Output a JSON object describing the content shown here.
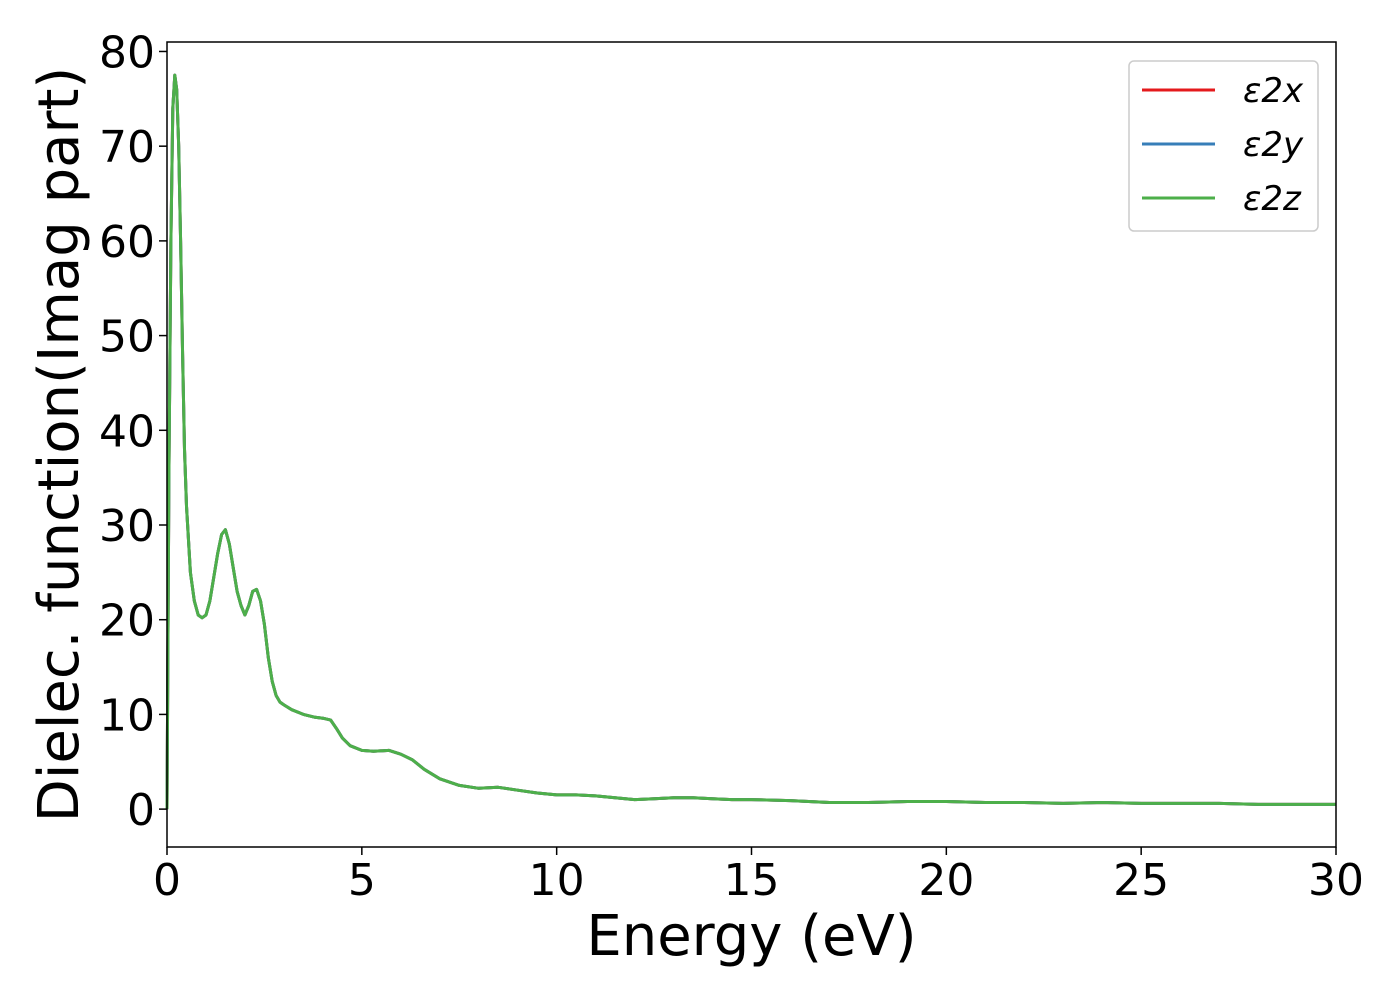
{
  "chart_data": {
    "type": "line",
    "title": "",
    "xlabel": "Energy (eV)",
    "ylabel": "Dielec. function(Imag part)",
    "xlim": [
      0,
      30
    ],
    "ylim": [
      -4,
      81
    ],
    "xticks": [
      "0",
      "5",
      "10",
      "15",
      "20",
      "25",
      "30"
    ],
    "xtick_values": [
      0,
      5,
      10,
      15,
      20,
      25,
      30
    ],
    "yticks": [
      "0",
      "10",
      "20",
      "30",
      "40",
      "50",
      "60",
      "70",
      "80"
    ],
    "ytick_values": [
      0,
      10,
      20,
      30,
      40,
      50,
      60,
      70,
      80
    ],
    "grid": false,
    "legend_position": "top-right",
    "x": [
      0,
      0.05,
      0.1,
      0.15,
      0.2,
      0.25,
      0.3,
      0.35,
      0.4,
      0.45,
      0.5,
      0.6,
      0.7,
      0.8,
      0.9,
      1.0,
      1.1,
      1.2,
      1.3,
      1.4,
      1.5,
      1.6,
      1.7,
      1.8,
      1.9,
      2.0,
      2.1,
      2.2,
      2.3,
      2.4,
      2.5,
      2.6,
      2.7,
      2.8,
      2.9,
      3.0,
      3.2,
      3.5,
      3.8,
      4.0,
      4.2,
      4.35,
      4.5,
      4.7,
      5.0,
      5.3,
      5.7,
      6.0,
      6.3,
      6.6,
      7.0,
      7.5,
      8.0,
      8.5,
      9.0,
      9.5,
      10.0,
      10.5,
      11.0,
      11.5,
      12.0,
      12.5,
      13.0,
      13.5,
      14.0,
      14.5,
      15.0,
      16.0,
      17.0,
      18.0,
      19.0,
      20.0,
      21.0,
      22.0,
      23.0,
      24.0,
      25.0,
      26.0,
      27.0,
      28.0,
      29.0,
      30.0
    ],
    "series": [
      {
        "name": "ε2x",
        "color": "#e41a1c",
        "values": [
          0,
          35,
          60,
          74,
          77.5,
          76,
          70,
          60,
          48,
          38,
          32,
          25,
          22,
          20.5,
          20.2,
          20.5,
          22,
          24.5,
          27,
          29,
          29.5,
          28,
          25.5,
          23,
          21.5,
          20.5,
          21.5,
          23,
          23.2,
          22,
          19.5,
          16,
          13.5,
          12,
          11.3,
          11,
          10.5,
          10,
          9.7,
          9.6,
          9.4,
          8.5,
          7.5,
          6.7,
          6.2,
          6.1,
          6.2,
          5.8,
          5.2,
          4.2,
          3.2,
          2.5,
          2.2,
          2.3,
          2.0,
          1.7,
          1.5,
          1.5,
          1.4,
          1.2,
          1.0,
          1.1,
          1.2,
          1.2,
          1.1,
          1.0,
          1.0,
          0.9,
          0.7,
          0.7,
          0.8,
          0.8,
          0.7,
          0.7,
          0.6,
          0.7,
          0.6,
          0.6,
          0.6,
          0.5,
          0.5,
          0.5
        ]
      },
      {
        "name": "ε2y",
        "color": "#377eb8",
        "values": [
          0,
          35,
          60,
          74,
          77.5,
          76,
          70,
          60,
          48,
          38,
          32,
          25,
          22,
          20.5,
          20.2,
          20.5,
          22,
          24.5,
          27,
          29,
          29.5,
          28,
          25.5,
          23,
          21.5,
          20.5,
          21.5,
          23,
          23.2,
          22,
          19.5,
          16,
          13.5,
          12,
          11.3,
          11,
          10.5,
          10,
          9.7,
          9.6,
          9.4,
          8.5,
          7.5,
          6.7,
          6.2,
          6.1,
          6.2,
          5.8,
          5.2,
          4.2,
          3.2,
          2.5,
          2.2,
          2.3,
          2.0,
          1.7,
          1.5,
          1.5,
          1.4,
          1.2,
          1.0,
          1.1,
          1.2,
          1.2,
          1.1,
          1.0,
          1.0,
          0.9,
          0.7,
          0.7,
          0.8,
          0.8,
          0.7,
          0.7,
          0.6,
          0.7,
          0.6,
          0.6,
          0.6,
          0.5,
          0.5,
          0.5
        ]
      },
      {
        "name": "ε2z",
        "color": "#4daf4a",
        "values": [
          0,
          35,
          60,
          74,
          77.5,
          76,
          70,
          60,
          48,
          38,
          32,
          25,
          22,
          20.5,
          20.2,
          20.5,
          22,
          24.5,
          27,
          29,
          29.5,
          28,
          25.5,
          23,
          21.5,
          20.5,
          21.5,
          23,
          23.2,
          22,
          19.5,
          16,
          13.5,
          12,
          11.3,
          11,
          10.5,
          10,
          9.7,
          9.6,
          9.4,
          8.5,
          7.5,
          6.7,
          6.2,
          6.1,
          6.2,
          5.8,
          5.2,
          4.2,
          3.2,
          2.5,
          2.2,
          2.3,
          2.0,
          1.7,
          1.5,
          1.5,
          1.4,
          1.2,
          1.0,
          1.1,
          1.2,
          1.2,
          1.1,
          1.0,
          1.0,
          0.9,
          0.7,
          0.7,
          0.8,
          0.8,
          0.7,
          0.7,
          0.6,
          0.7,
          0.6,
          0.6,
          0.6,
          0.5,
          0.5,
          0.5
        ]
      }
    ]
  }
}
